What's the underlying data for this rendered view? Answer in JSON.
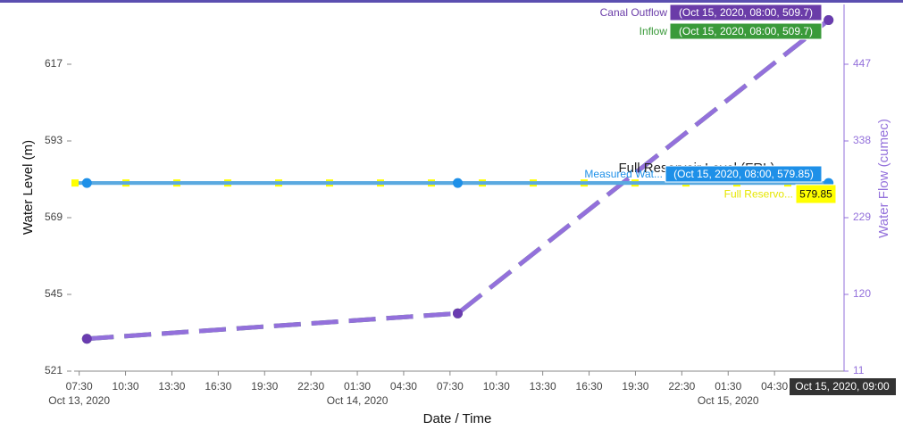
{
  "chart_data": {
    "type": "line",
    "xlabel": "Date / Time",
    "ylabel": "Water Level (m)",
    "y2label": "Water Flow (cumec)",
    "xlim": [
      "2020-10-13T07:00",
      "2020-10-15T09:00"
    ],
    "ylim": [
      521,
      635.7
    ],
    "y2lim": [
      11,
      531.9
    ],
    "yticks": [
      521,
      545,
      569,
      593,
      617
    ],
    "y2ticks": [
      11,
      120,
      229,
      338,
      447
    ],
    "xticks": [
      {
        "value": "2020-10-13T07:30",
        "label": "07:30",
        "sublabel": "Oct 13, 2020"
      },
      {
        "value": "2020-10-13T10:30",
        "label": "10:30"
      },
      {
        "value": "2020-10-13T13:30",
        "label": "13:30"
      },
      {
        "value": "2020-10-13T16:30",
        "label": "16:30"
      },
      {
        "value": "2020-10-13T19:30",
        "label": "19:30"
      },
      {
        "value": "2020-10-13T22:30",
        "label": "22:30"
      },
      {
        "value": "2020-10-14T01:30",
        "label": "01:30",
        "sublabel": "Oct 14, 2020"
      },
      {
        "value": "2020-10-14T04:30",
        "label": "04:30"
      },
      {
        "value": "2020-10-14T07:30",
        "label": "07:30"
      },
      {
        "value": "2020-10-14T10:30",
        "label": "10:30"
      },
      {
        "value": "2020-10-14T13:30",
        "label": "13:30"
      },
      {
        "value": "2020-10-14T16:30",
        "label": "16:30"
      },
      {
        "value": "2020-10-14T19:30",
        "label": "19:30"
      },
      {
        "value": "2020-10-14T22:30",
        "label": "22:30"
      },
      {
        "value": "2020-10-15T01:30",
        "label": "01:30",
        "sublabel": "Oct 15, 2020"
      },
      {
        "value": "2020-10-15T04:30",
        "label": "04:30"
      }
    ],
    "x_hover_label": "Oct 15, 2020, 09:00",
    "annotation": "Full Reservoir Level (FRL)",
    "series": [
      {
        "name": "Canal Outflow",
        "color": "#9370db",
        "marker_color": "#6a3cb0",
        "axis": "y2",
        "dashed": true,
        "markers": true,
        "x": [
          "2020-10-13T08:00",
          "2020-10-14T08:00",
          "2020-10-15T08:00"
        ],
        "values": [
          57,
          93,
          509.7
        ],
        "value_labels": [
          null,
          null,
          "(Oct 15, 2020, 08:00, 509.7)"
        ]
      },
      {
        "name": "Inflow",
        "color": "#3a9a3a",
        "marker_color": "#3a9a3a",
        "axis": "y2",
        "dashed": true,
        "markers": true,
        "x": [
          "2020-10-13T08:00",
          "2020-10-14T08:00",
          "2020-10-15T08:00"
        ],
        "values": [
          57,
          93,
          509.7
        ],
        "value_labels": [
          null,
          null,
          "(Oct 15, 2020, 08:00, 509.7)"
        ]
      },
      {
        "name": "Measured Wat...",
        "color": "#5aa9e0",
        "marker_color": "#1e90e8",
        "axis": "y",
        "dashed": false,
        "markers": true,
        "x": [
          "2020-10-13T08:00",
          "2020-10-14T08:00",
          "2020-10-15T08:00"
        ],
        "values": [
          579.85,
          579.85,
          579.85
        ],
        "value_labels": [
          null,
          null,
          "(Oct 15, 2020, 08:00, 579.85)"
        ]
      },
      {
        "name": "Full Reservo...",
        "color": "#ffff00",
        "marker_color": "#ffff00",
        "axis": "y",
        "dashed": true,
        "markers": false,
        "x": [
          "2020-10-13T07:00",
          "2020-10-15T08:00"
        ],
        "values": [
          579.85,
          579.85
        ],
        "value_labels": [
          null,
          "579.85"
        ]
      }
    ]
  }
}
